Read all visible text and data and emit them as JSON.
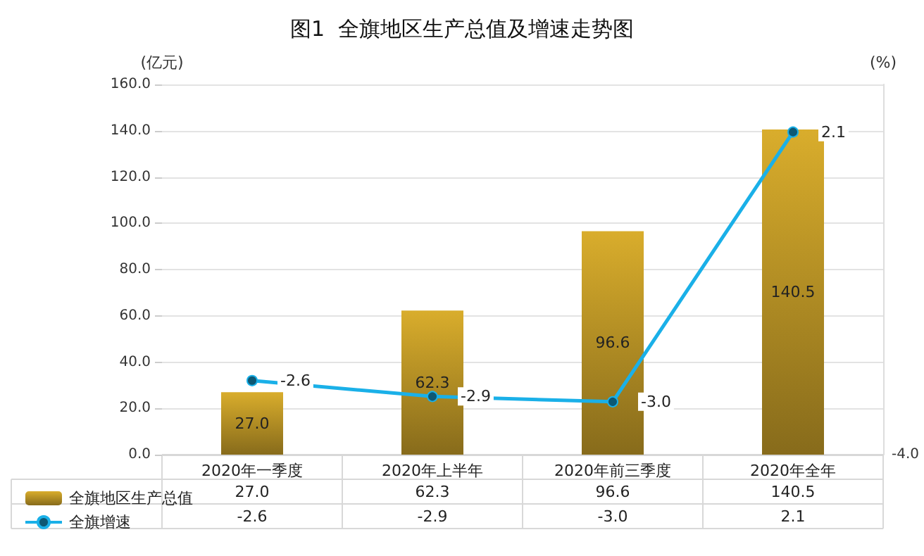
{
  "chart_data": {
    "type": "bar",
    "title": "图1  全旗地区生产总值及增速走势图",
    "ylabel": "(亿元)",
    "y2label": "(%)",
    "categories": [
      "2020年一季度",
      "2020年上半年",
      "2020年前三季度",
      "2020年全年"
    ],
    "series": [
      {
        "name": "全旗地区生产总值",
        "color": "#d9ad2c",
        "values": [
          27.0,
          62.3,
          96.6,
          140.5
        ],
        "value_labels": [
          "27.0",
          "62.3",
          "96.6",
          "140.5"
        ]
      },
      {
        "name": "全旗增速",
        "type": "line",
        "axis": "y2",
        "color": "#1ab0e8",
        "values": [
          -2.6,
          -2.9,
          -3.0,
          2.1
        ],
        "value_labels": [
          "-2.6",
          "-2.9",
          "-3.0",
          "2.1"
        ]
      }
    ],
    "ylim": [
      0,
      160
    ],
    "yticks": [
      {
        "value": 0,
        "label": "0.0"
      },
      {
        "value": 20,
        "label": "20.0"
      },
      {
        "value": 40,
        "label": "40.0"
      },
      {
        "value": 60,
        "label": "60.0"
      },
      {
        "value": 80,
        "label": "80.0"
      },
      {
        "value": 100,
        "label": "100.0"
      },
      {
        "value": 120,
        "label": "120.0"
      },
      {
        "value": 140,
        "label": "140.0"
      },
      {
        "value": 160,
        "label": "160.0"
      }
    ],
    "y2lim": [
      -4,
      3
    ],
    "annotations": [
      "-4.0"
    ],
    "grid": "y",
    "legend": "bottom left",
    "marker": "circle",
    "line_style": "solid",
    "data_labels": true
  }
}
